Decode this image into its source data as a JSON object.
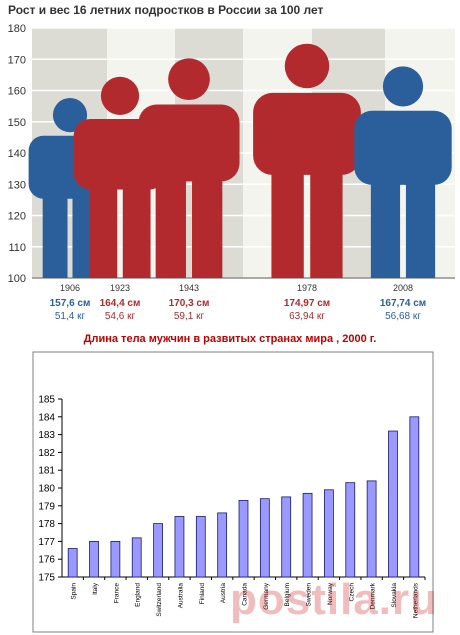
{
  "chart_data": [
    {
      "type": "bar",
      "title": "Рост и вес 16 летних подростков в России за 100 лет",
      "ylim": [
        100,
        180
      ],
      "yticks": [
        "100",
        "110",
        "120",
        "130",
        "140",
        "150",
        "160",
        "170",
        "180"
      ],
      "grid": true,
      "categories": [
        "1906",
        "1923",
        "1943",
        "1978",
        "2008"
      ],
      "values": [
        157.6,
        164.4,
        170.3,
        174.97,
        167.74
      ],
      "height_labels": [
        "157,6 см",
        "164,4 см",
        "170,3 см",
        "174,97 см",
        "167,74 см"
      ],
      "weight_labels": [
        "51,4 кг",
        "54,6 кг",
        "59,1 кг",
        "63,94 кг",
        "56,68 кг"
      ],
      "colors": [
        "#2b5f9c",
        "#b22a2e",
        "#b22a2e",
        "#b22a2e",
        "#2b5f9c"
      ]
    },
    {
      "type": "bar",
      "title": "Длина тела мужчин в развитых странах мира , 2000 г.",
      "ylim": [
        175,
        185
      ],
      "yticks": [
        "175",
        "176",
        "177",
        "178",
        "179",
        "180",
        "181",
        "182",
        "183",
        "184",
        "185"
      ],
      "grid": false,
      "categories": [
        "Spain",
        "Italy",
        "France",
        "England",
        "Switzerland",
        "Australia",
        "Finland",
        "Austria",
        "Canada",
        "Germany",
        "Belgium",
        "Sweden",
        "Norway",
        "Czech",
        "Denmark",
        "Slovakia",
        "Netherlands"
      ],
      "values": [
        176.6,
        177.0,
        177.0,
        177.2,
        178.0,
        178.4,
        178.4,
        178.6,
        179.3,
        179.4,
        179.5,
        179.7,
        179.9,
        180.3,
        180.4,
        183.2,
        184.0
      ]
    }
  ],
  "watermark": "postila.ru"
}
